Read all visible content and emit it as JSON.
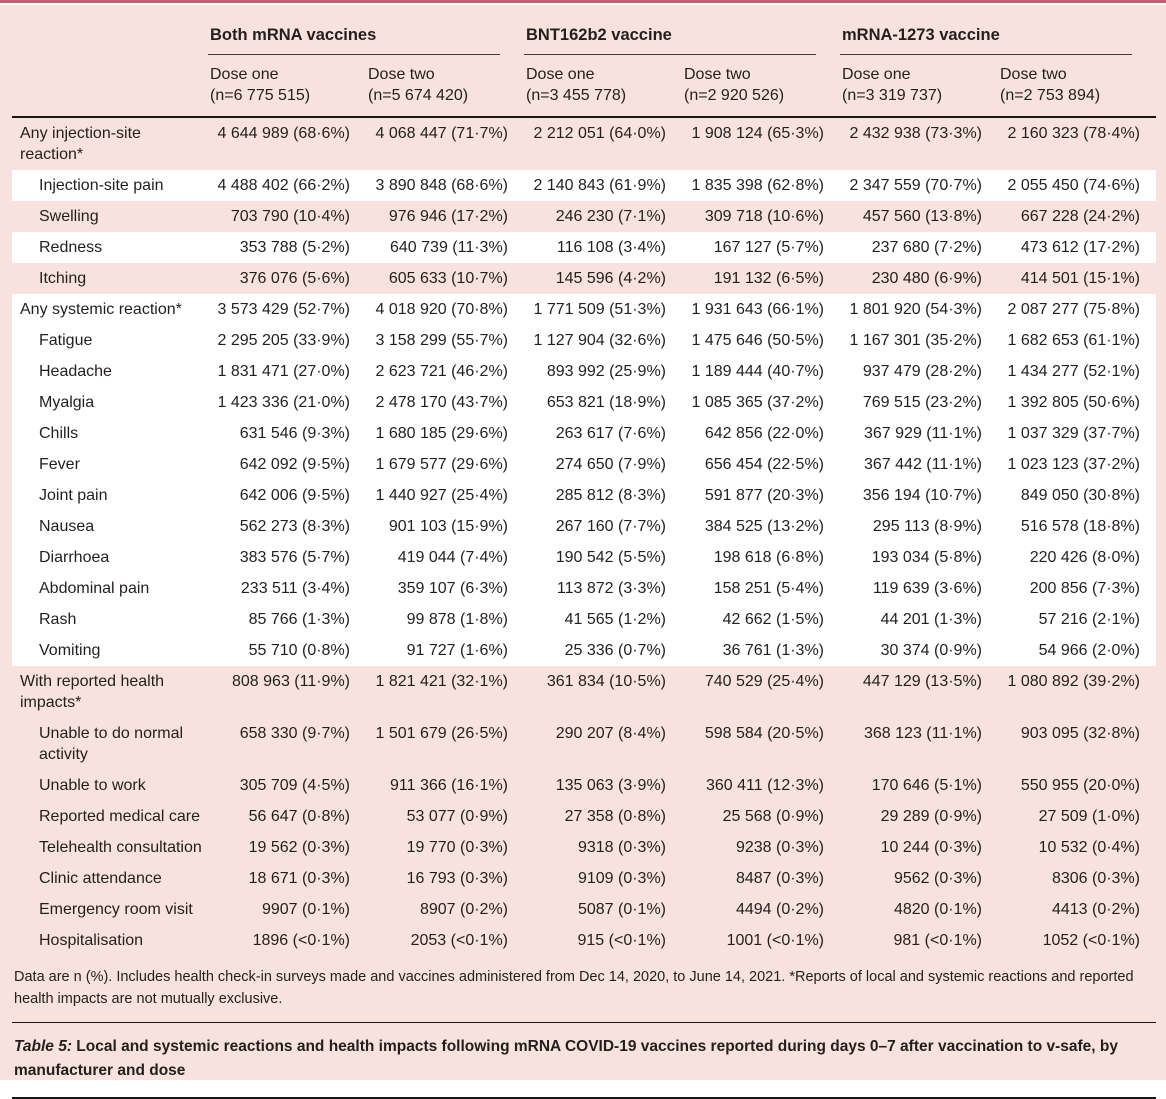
{
  "colors": {
    "bg_pink": "#f7e2dd",
    "row_white": "#ffffff",
    "accent_rule": "#c55f76",
    "text": "#231f1d",
    "dark_rule": "#161616"
  },
  "header": {
    "groups": [
      {
        "label": "Both mRNA vaccines"
      },
      {
        "label": "BNT162b2 vaccine"
      },
      {
        "label": "mRNA-1273 vaccine"
      }
    ],
    "columns": [
      {
        "dose": "Dose one",
        "n": "(n=6 775 515)"
      },
      {
        "dose": "Dose two",
        "n": "(n=5 674 420)"
      },
      {
        "dose": "Dose one",
        "n": "(n=3 455 778)"
      },
      {
        "dose": "Dose two",
        "n": "(n=2 920 526)"
      },
      {
        "dose": "Dose one",
        "n": "(n=3 319 737)"
      },
      {
        "dose": "Dose two",
        "n": "(n=2 753 894)"
      }
    ]
  },
  "rows": [
    {
      "label": "Any injection-site reaction*",
      "indent": false,
      "bg": "pink",
      "values": [
        "4 644 989 (68·6%)",
        "4 068 447 (71·7%)",
        "2 212 051 (64·0%)",
        "1 908 124 (65·3%)",
        "2 432 938 (73·3%)",
        "2 160 323 (78·4%)"
      ]
    },
    {
      "label": "Injection-site pain",
      "indent": true,
      "bg": "white",
      "values": [
        "4 488 402 (66·2%)",
        "3 890 848 (68·6%)",
        "2 140 843 (61·9%)",
        "1 835 398 (62·8%)",
        "2 347 559 (70·7%)",
        "2 055 450 (74·6%)"
      ]
    },
    {
      "label": "Swelling",
      "indent": true,
      "bg": "pink",
      "values": [
        "703 790 (10·4%)",
        "976 946 (17·2%)",
        "246 230 (7·1%)",
        "309 718 (10·6%)",
        "457 560 (13·8%)",
        "667 228 (24·2%)"
      ]
    },
    {
      "label": "Redness",
      "indent": true,
      "bg": "white",
      "values": [
        "353 788 (5·2%)",
        "640 739 (11·3%)",
        "116 108 (3·4%)",
        "167 127 (5·7%)",
        "237 680 (7·2%)",
        "473 612 (17·2%)"
      ]
    },
    {
      "label": "Itching",
      "indent": true,
      "bg": "pink",
      "values": [
        "376 076 (5·6%)",
        "605 633 (10·7%)",
        "145 596 (4·2%)",
        "191 132 (6·5%)",
        "230 480 (6·9%)",
        "414 501 (15·1%)"
      ]
    },
    {
      "label": "Any systemic reaction*",
      "indent": false,
      "bg": "white",
      "values": [
        "3 573 429 (52·7%)",
        "4 018 920 (70·8%)",
        "1 771 509 (51·3%)",
        "1 931 643 (66·1%)",
        "1 801 920 (54·3%)",
        "2 087 277 (75·8%)"
      ]
    },
    {
      "label": "Fatigue",
      "indent": true,
      "bg": "white",
      "values": [
        "2 295 205 (33·9%)",
        "3 158 299 (55·7%)",
        "1 127 904 (32·6%)",
        "1 475 646 (50·5%)",
        "1 167 301 (35·2%)",
        "1 682 653 (61·1%)"
      ]
    },
    {
      "label": "Headache",
      "indent": true,
      "bg": "white",
      "values": [
        "1 831 471 (27·0%)",
        "2 623 721 (46·2%)",
        "893 992 (25·9%)",
        "1 189 444 (40·7%)",
        "937 479 (28·2%)",
        "1 434 277 (52·1%)"
      ]
    },
    {
      "label": "Myalgia",
      "indent": true,
      "bg": "white",
      "values": [
        "1 423 336 (21·0%)",
        "2 478 170 (43·7%)",
        "653 821 (18·9%)",
        "1 085 365 (37·2%)",
        "769 515 (23·2%)",
        "1 392 805 (50·6%)"
      ]
    },
    {
      "label": "Chills",
      "indent": true,
      "bg": "white",
      "values": [
        "631 546 (9·3%)",
        "1 680 185 (29·6%)",
        "263 617 (7·6%)",
        "642 856 (22·0%)",
        "367 929 (11·1%)",
        "1 037 329 (37·7%)"
      ]
    },
    {
      "label": "Fever",
      "indent": true,
      "bg": "white",
      "values": [
        "642 092 (9·5%)",
        "1 679 577 (29·6%)",
        "274 650 (7·9%)",
        "656 454 (22·5%)",
        "367 442 (11·1%)",
        "1 023 123 (37·2%)"
      ]
    },
    {
      "label": "Joint pain",
      "indent": true,
      "bg": "white",
      "values": [
        "642 006 (9·5%)",
        "1 440 927 (25·4%)",
        "285 812 (8·3%)",
        "591 877 (20·3%)",
        "356 194 (10·7%)",
        "849 050 (30·8%)"
      ]
    },
    {
      "label": "Nausea",
      "indent": true,
      "bg": "white",
      "values": [
        "562 273 (8·3%)",
        "901 103 (15·9%)",
        "267 160 (7·7%)",
        "384 525 (13·2%)",
        "295 113 (8·9%)",
        "516 578 (18·8%)"
      ]
    },
    {
      "label": "Diarrhoea",
      "indent": true,
      "bg": "white",
      "values": [
        "383 576 (5·7%)",
        "419 044 (7·4%)",
        "190 542 (5·5%)",
        "198 618 (6·8%)",
        "193 034 (5·8%)",
        "220 426 (8·0%)"
      ]
    },
    {
      "label": "Abdominal pain",
      "indent": true,
      "bg": "white",
      "values": [
        "233 511 (3·4%)",
        "359 107 (6·3%)",
        "113 872 (3·3%)",
        "158 251 (5·4%)",
        "119 639 (3·6%)",
        "200 856 (7·3%)"
      ]
    },
    {
      "label": "Rash",
      "indent": true,
      "bg": "white",
      "values": [
        "85 766 (1·3%)",
        "99 878 (1·8%)",
        "41 565 (1·2%)",
        "42 662 (1·5%)",
        "44 201 (1·3%)",
        "57 216 (2·1%)"
      ]
    },
    {
      "label": "Vomiting",
      "indent": true,
      "bg": "white",
      "values": [
        "55 710 (0·8%)",
        "91 727 (1·6%)",
        "25 336 (0·7%)",
        "36 761 (1·3%)",
        "30 374 (0·9%)",
        "54 966 (2·0%)"
      ]
    },
    {
      "label": "With reported health impacts*",
      "indent": false,
      "bg": "pink",
      "values": [
        "808 963 (11·9%)",
        "1 821 421 (32·1%)",
        "361 834 (10·5%)",
        "740 529 (25·4%)",
        "447 129 (13·5%)",
        "1 080 892 (39·2%)"
      ]
    },
    {
      "label": "Unable to do normal activity",
      "indent": true,
      "bg": "pink",
      "values": [
        "658 330 (9·7%)",
        "1 501 679 (26·5%)",
        "290 207 (8·4%)",
        "598 584 (20·5%)",
        "368 123 (11·1%)",
        "903 095 (32·8%)"
      ]
    },
    {
      "label": "Unable to work",
      "indent": true,
      "bg": "pink",
      "values": [
        "305 709 (4·5%)",
        "911 366 (16·1%)",
        "135 063 (3·9%)",
        "360 411 (12·3%)",
        "170 646 (5·1%)",
        "550 955 (20·0%)"
      ]
    },
    {
      "label": "Reported medical care",
      "indent": true,
      "bg": "pink",
      "values": [
        "56 647 (0·8%)",
        "53 077 (0·9%)",
        "27 358 (0·8%)",
        "25 568 (0·9%)",
        "29 289 (0·9%)",
        "27 509 (1·0%)"
      ]
    },
    {
      "label": "Telehealth consultation",
      "indent": true,
      "bg": "pink",
      "values": [
        "19 562 (0·3%)",
        "19 770 (0·3%)",
        "9318 (0·3%)",
        "9238 (0·3%)",
        "10 244 (0·3%)",
        "10 532 (0·4%)"
      ]
    },
    {
      "label": "Clinic attendance",
      "indent": true,
      "bg": "pink",
      "values": [
        "18 671 (0·3%)",
        "16 793 (0·3%)",
        "9109 (0·3%)",
        "8487 (0·3%)",
        "9562 (0·3%)",
        "8306 (0·3%)"
      ]
    },
    {
      "label": "Emergency room visit",
      "indent": true,
      "bg": "pink",
      "values": [
        "9907 (0·1%)",
        "8907 (0·2%)",
        "5087 (0·1%)",
        "4494 (0·2%)",
        "4820 (0·1%)",
        "4413 (0·2%)"
      ]
    },
    {
      "label": "Hospitalisation",
      "indent": true,
      "bg": "pink",
      "values": [
        "1896 (<0·1%)",
        "2053 (<0·1%)",
        "915 (<0·1%)",
        "1001 (<0·1%)",
        "981 (<0·1%)",
        "1052 (<0·1%)"
      ]
    }
  ],
  "footnote": "Data are n (%). Includes health check-in surveys made and vaccines administered from Dec 14, 2020, to June 14, 2021. *Reports of local and systemic reactions and reported health impacts are not mutually exclusive.",
  "caption": {
    "label": "Table 5:",
    "text": " Local and systemic reactions and health impacts following mRNA COVID-19 vaccines reported during days 0–7 after vaccination to v-safe, by manufacturer and dose"
  }
}
